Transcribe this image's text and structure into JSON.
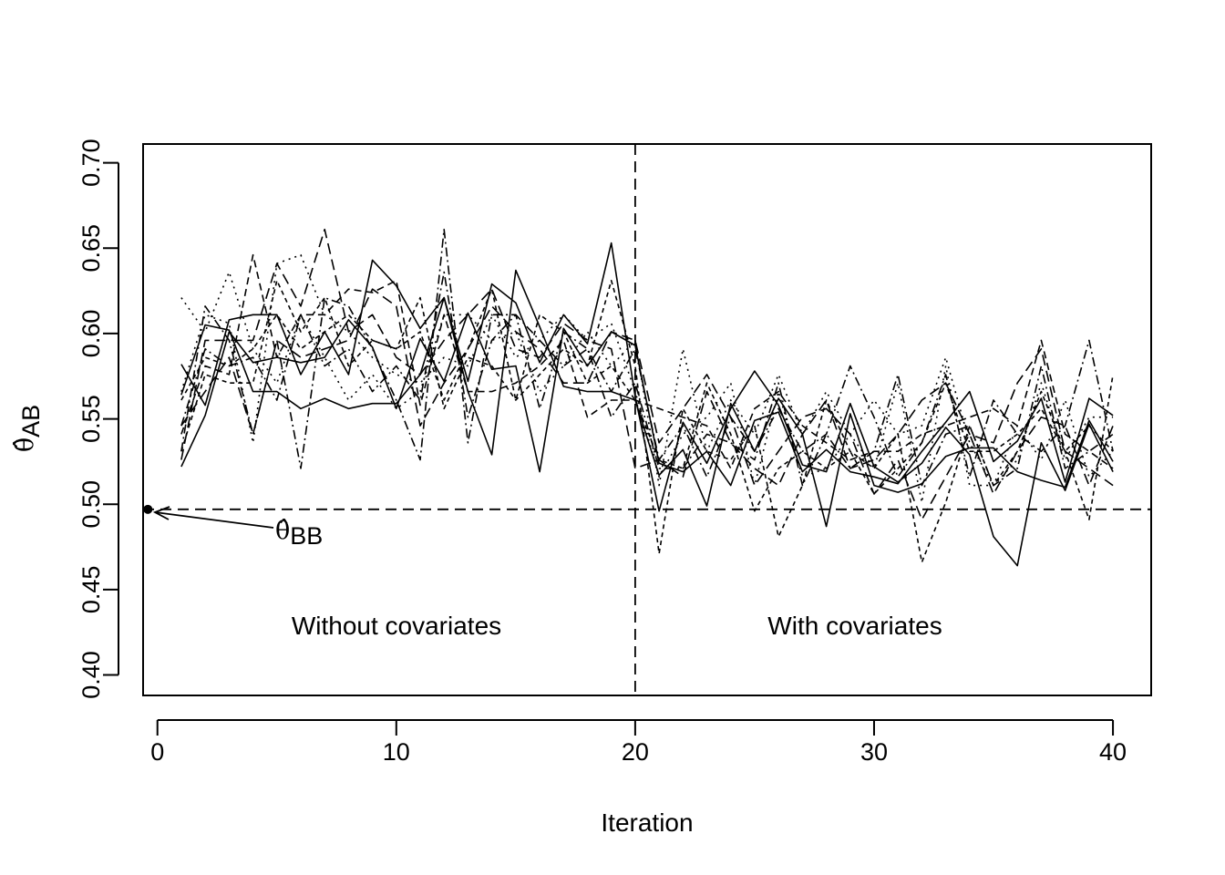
{
  "chart_data": {
    "type": "line",
    "xlabel": "Iteration",
    "ylabel": {
      "symbol": "θ̂",
      "subscript": "AB"
    },
    "xlim": [
      -0.6,
      41.6
    ],
    "ylim": [
      0.388,
      0.711
    ],
    "xticks": [
      0,
      10,
      20,
      30,
      40
    ],
    "yticks": [
      0.4,
      0.45,
      0.5,
      0.55,
      0.6,
      0.65,
      0.7
    ],
    "x": [
      1,
      2,
      3,
      4,
      5,
      6,
      7,
      8,
      9,
      10,
      11,
      12,
      13,
      14,
      15,
      16,
      17,
      18,
      19,
      20,
      21,
      22,
      23,
      24,
      25,
      26,
      27,
      28,
      29,
      30,
      31,
      32,
      33,
      34,
      35,
      36,
      37,
      38,
      39,
      40
    ],
    "series": [
      {
        "dash": "solid",
        "values": [
          0.582,
          0.558,
          0.608,
          0.611,
          0.611,
          0.576,
          0.601,
          0.576,
          0.643,
          0.628,
          0.603,
          0.621,
          0.572,
          0.629,
          0.618,
          0.583,
          0.611,
          0.594,
          0.653,
          0.563,
          0.496,
          0.548,
          0.524,
          0.556,
          0.578,
          0.558,
          0.523,
          0.519,
          0.559,
          0.522,
          0.513,
          0.524,
          0.545,
          0.529,
          0.481,
          0.464,
          0.536,
          0.508,
          0.547,
          0.519
        ]
      },
      {
        "dash": "solid",
        "values": [
          0.564,
          0.605,
          0.602,
          0.566,
          0.566,
          0.556,
          0.562,
          0.556,
          0.559,
          0.559,
          0.576,
          0.621,
          0.566,
          0.529,
          0.637,
          0.604,
          0.569,
          0.566,
          0.566,
          0.561,
          0.517,
          0.532,
          0.499,
          0.559,
          0.531,
          0.562,
          0.541,
          0.487,
          0.553,
          0.511,
          0.507,
          0.512,
          0.528,
          0.533,
          0.533,
          0.519,
          0.514,
          0.51,
          0.549,
          0.525
        ]
      },
      {
        "dash": "solid",
        "values": [
          0.522,
          0.552,
          0.601,
          0.583,
          0.586,
          0.583,
          0.586,
          0.608,
          0.592,
          0.556,
          0.597,
          0.572,
          0.612,
          0.579,
          0.581,
          0.519,
          0.603,
          0.581,
          0.601,
          0.593,
          0.524,
          0.519,
          0.531,
          0.511,
          0.549,
          0.554,
          0.519,
          0.532,
          0.519,
          0.516,
          0.512,
          0.531,
          0.548,
          0.566,
          0.525,
          0.537,
          0.562,
          0.513,
          0.562,
          0.552
        ]
      },
      {
        "dash": "8,5",
        "values": [
          0.541,
          0.581,
          0.576,
          0.646,
          0.586,
          0.611,
          0.611,
          0.626,
          0.624,
          0.631,
          0.558,
          0.611,
          0.566,
          0.566,
          0.571,
          0.581,
          0.596,
          0.551,
          0.561,
          0.561,
          0.556,
          0.551,
          0.546,
          0.521,
          0.556,
          0.566,
          0.546,
          0.536,
          0.526,
          0.531,
          0.531,
          0.541,
          0.546,
          0.551,
          0.556,
          0.546,
          0.596,
          0.541,
          0.531,
          0.521
        ]
      },
      {
        "dash": "12,6",
        "values": [
          0.526,
          0.596,
          0.596,
          0.596,
          0.641,
          0.616,
          0.661,
          0.601,
          0.611,
          0.586,
          0.576,
          0.596,
          0.611,
          0.626,
          0.591,
          0.586,
          0.606,
          0.596,
          0.591,
          0.521,
          0.526,
          0.516,
          0.566,
          0.536,
          0.521,
          0.511,
          0.541,
          0.561,
          0.521,
          0.526,
          0.541,
          0.561,
          0.571,
          0.541,
          0.536,
          0.571,
          0.591,
          0.531,
          0.521,
          0.511
        ]
      },
      {
        "dash": "12,6",
        "values": [
          0.546,
          0.566,
          0.586,
          0.541,
          0.596,
          0.586,
          0.591,
          0.596,
          0.626,
          0.616,
          0.546,
          0.571,
          0.591,
          0.616,
          0.601,
          0.591,
          0.571,
          0.571,
          0.601,
          0.596,
          0.536,
          0.556,
          0.576,
          0.551,
          0.511,
          0.531,
          0.551,
          0.556,
          0.541,
          0.506,
          0.526,
          0.491,
          0.516,
          0.541,
          0.506,
          0.531,
          0.551,
          0.546,
          0.511,
          0.546
        ]
      },
      {
        "dash": "5,4",
        "values": [
          0.531,
          0.576,
          0.571,
          0.571,
          0.631,
          0.601,
          0.621,
          0.581,
          0.596,
          0.591,
          0.601,
          0.561,
          0.591,
          0.626,
          0.561,
          0.611,
          0.601,
          0.571,
          0.581,
          0.561,
          0.526,
          0.521,
          0.571,
          0.541,
          0.496,
          0.521,
          0.531,
          0.521,
          0.531,
          0.506,
          0.521,
          0.536,
          0.571,
          0.531,
          0.531,
          0.541,
          0.556,
          0.531,
          0.546,
          0.531
        ]
      },
      {
        "dash": "5,4",
        "values": [
          0.561,
          0.586,
          0.581,
          0.591,
          0.611,
          0.591,
          0.601,
          0.611,
          0.596,
          0.591,
          0.621,
          0.556,
          0.586,
          0.581,
          0.561,
          0.576,
          0.591,
          0.581,
          0.631,
          0.581,
          0.471,
          0.556,
          0.531,
          0.526,
          0.546,
          0.481,
          0.511,
          0.561,
          0.531,
          0.521,
          0.541,
          0.466,
          0.501,
          0.546,
          0.511,
          0.531,
          0.566,
          0.531,
          0.491,
          0.576
        ]
      },
      {
        "dash": "2,5",
        "values": [
          0.621,
          0.601,
          0.636,
          0.591,
          0.571,
          0.611,
          0.586,
          0.561,
          0.576,
          0.556,
          0.566,
          0.611,
          0.611,
          0.596,
          0.601,
          0.566,
          0.581,
          0.601,
          0.581,
          0.596,
          0.511,
          0.591,
          0.531,
          0.561,
          0.541,
          0.576,
          0.541,
          0.566,
          0.541,
          0.561,
          0.541,
          0.546,
          0.586,
          0.536,
          0.511,
          0.526,
          0.571,
          0.526,
          0.551,
          0.551
        ]
      },
      {
        "dash": "2,5",
        "values": [
          0.566,
          0.611,
          0.606,
          0.536,
          0.641,
          0.646,
          0.611,
          0.601,
          0.586,
          0.576,
          0.571,
          0.586,
          0.581,
          0.611,
          0.586,
          0.596,
          0.611,
          0.596,
          0.606,
          0.566,
          0.516,
          0.541,
          0.551,
          0.571,
          0.511,
          0.566,
          0.516,
          0.521,
          0.541,
          0.521,
          0.571,
          0.501,
          0.581,
          0.511,
          0.511,
          0.546,
          0.526,
          0.561,
          0.516,
          0.531
        ]
      },
      {
        "dash": "10,4,2,4",
        "values": [
          0.531,
          0.616,
          0.596,
          0.541,
          0.596,
          0.521,
          0.621,
          0.616,
          0.591,
          0.561,
          0.526,
          0.661,
          0.536,
          0.611,
          0.611,
          0.556,
          0.601,
          0.591,
          0.551,
          0.571,
          0.521,
          0.521,
          0.541,
          0.536,
          0.526,
          0.571,
          0.511,
          0.541,
          0.521,
          0.531,
          0.576,
          0.511,
          0.541,
          0.546,
          0.511,
          0.521,
          0.581,
          0.521,
          0.531,
          0.541
        ]
      },
      {
        "dash": "10,4,2,4",
        "values": [
          0.546,
          0.591,
          0.581,
          0.586,
          0.561,
          0.611,
          0.581,
          0.591,
          0.566,
          0.581,
          0.561,
          0.636,
          0.551,
          0.596,
          0.611,
          0.596,
          0.581,
          0.591,
          0.566,
          0.591,
          0.526,
          0.546,
          0.516,
          0.551,
          0.531,
          0.556,
          0.531,
          0.541,
          0.581,
          0.551,
          0.516,
          0.536,
          0.576,
          0.516,
          0.561,
          0.541,
          0.531,
          0.546,
          0.596,
          0.531
        ]
      }
    ],
    "reference_lines": [
      {
        "orientation": "horizontal",
        "value": 0.497,
        "dash": "12,7"
      },
      {
        "orientation": "vertical",
        "value": 20,
        "dash": "12,7"
      }
    ],
    "reference_point": {
      "x": -0.4,
      "y": 0.497
    },
    "annotations": {
      "left_region": "Without covariates",
      "right_region": "With covariates",
      "reference_symbol": "θ̂",
      "reference_subscript": "BB"
    }
  }
}
